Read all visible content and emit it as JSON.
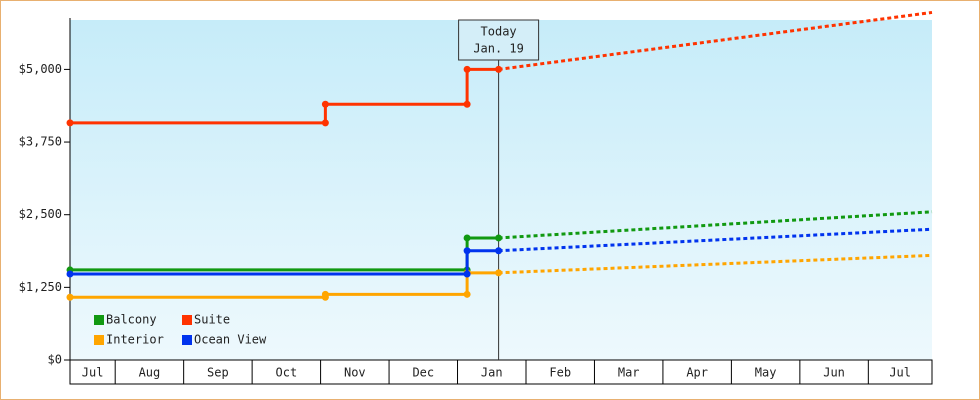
{
  "chart_data": {
    "type": "line",
    "step": true,
    "categories": [
      "Jul",
      "Aug",
      "Sep",
      "Oct",
      "Nov",
      "Dec",
      "Jan",
      "Feb",
      "Mar",
      "Apr",
      "May",
      "Jun",
      "Jul"
    ],
    "xlim": [
      0.34,
      12.93
    ],
    "ylim": [
      0,
      5850
    ],
    "yticks": [
      {
        "value": 0,
        "label": "$0"
      },
      {
        "value": 1250,
        "label": "$1,250"
      },
      {
        "value": 2500,
        "label": "$2,500"
      },
      {
        "value": 3750,
        "label": "$3,750"
      },
      {
        "value": 5000,
        "label": "$5,000"
      }
    ],
    "annotation": {
      "x": 6.6,
      "lines": [
        "Today",
        "Jan. 19"
      ]
    },
    "series": [
      {
        "name": "Balcony",
        "color": "#119911",
        "x": [
          0.34,
          6.14,
          6.6
        ],
        "values": [
          1550,
          2100,
          2100
        ],
        "forecast_x": [
          6.6,
          12.93
        ],
        "forecast_values": [
          2100,
          2550
        ]
      },
      {
        "name": "Suite",
        "color": "#ff3300",
        "x": [
          0.34,
          4.07,
          6.14,
          6.6
        ],
        "values": [
          4080,
          4400,
          5000,
          5000
        ],
        "forecast_x": [
          6.6,
          12.93
        ],
        "forecast_values": [
          5000,
          5980
        ]
      },
      {
        "name": "Interior",
        "color": "#ffa500",
        "x": [
          0.34,
          4.07,
          6.14,
          6.6
        ],
        "values": [
          1080,
          1130,
          1500,
          1500
        ],
        "forecast_x": [
          6.6,
          12.93
        ],
        "forecast_values": [
          1500,
          1800
        ]
      },
      {
        "name": "Ocean View",
        "color": "#0033ee",
        "x": [
          0.34,
          6.14,
          6.6
        ],
        "values": [
          1480,
          1880,
          1880
        ],
        "forecast_x": [
          6.6,
          12.93
        ],
        "forecast_values": [
          1880,
          2250
        ]
      }
    ]
  }
}
